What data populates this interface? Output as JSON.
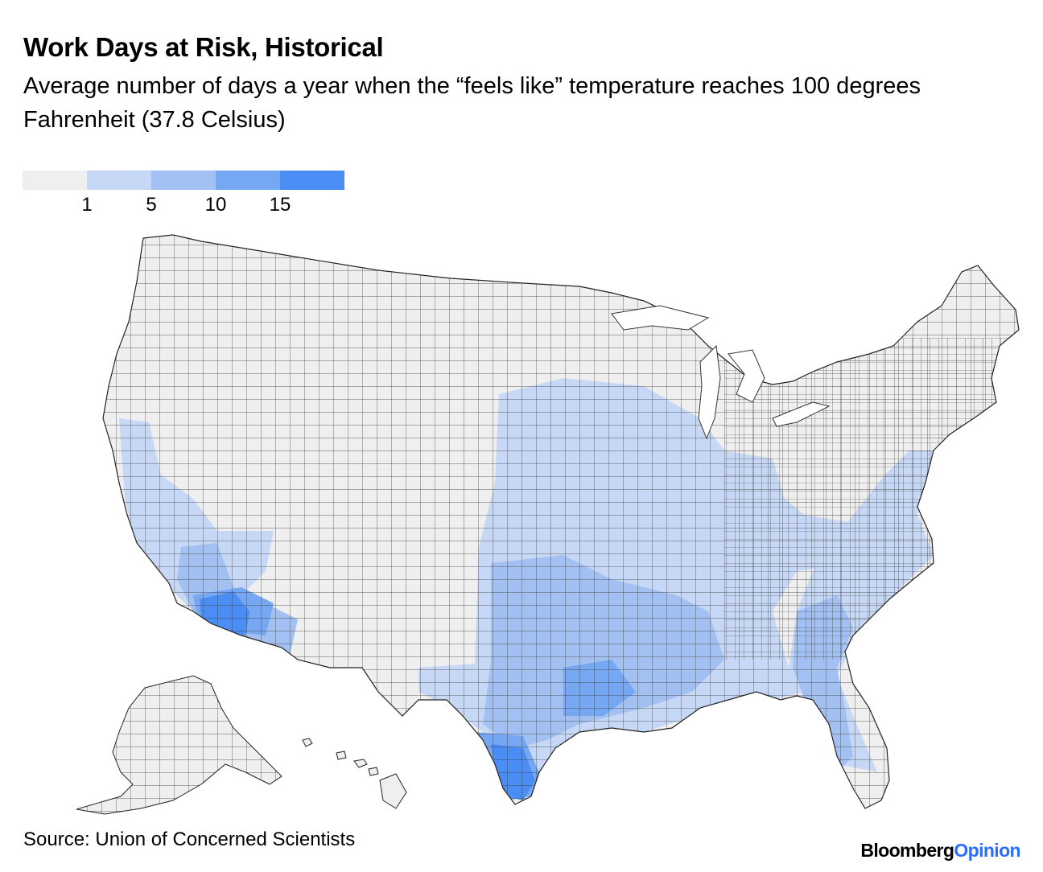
{
  "title": "Work Days at Risk, Historical",
  "subtitle": "Average number of days a year when the “feels like” temperature reaches 100 degrees Fahrenheit (37.8 Celsius)",
  "legend": {
    "swatch_colors": [
      "#efefef",
      "#c6d8f5",
      "#a2c1f2",
      "#76a7f3",
      "#4a8ef5"
    ],
    "ticks": [
      "1",
      "5",
      "10",
      "15"
    ]
  },
  "colors": {
    "none": "#efefef",
    "bin1": "#c6d8f5",
    "bin2": "#a2c1f2",
    "bin3": "#76a7f3",
    "bin4": "#4a8ef5",
    "border": "#333333"
  },
  "source": "Source: Union of Concerned Scientists",
  "brand": {
    "part1": "Bloomberg",
    "part2": "Opinion"
  }
}
